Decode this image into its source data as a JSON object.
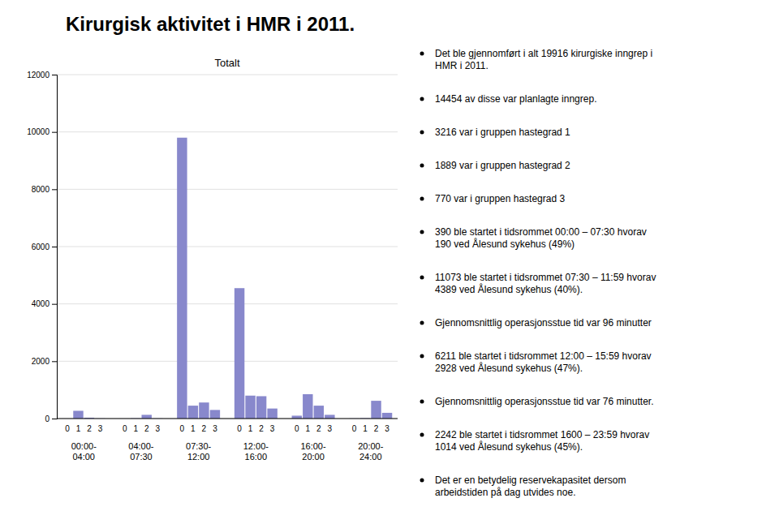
{
  "chart_data": {
    "type": "bar",
    "title": "Kirurgisk aktivitet i HMR i 2011.",
    "subtitle": "Totalt",
    "categories": [
      "00:00-\n04:00",
      "04:00-\n07:30",
      "07:30-\n12:00",
      "12:00-\n16:00",
      "16:00-\n20:00",
      "20:00-\n24:00"
    ],
    "sublabels": [
      "0",
      "1",
      "2",
      "3"
    ],
    "values": [
      [
        2,
        270,
        30,
        5
      ],
      [
        2,
        10,
        130,
        5
      ],
      [
        9800,
        450,
        560,
        300
      ],
      [
        4550,
        800,
        780,
        350
      ],
      [
        100,
        850,
        450,
        130
      ],
      [
        5,
        15,
        620,
        200
      ]
    ],
    "color": "#8888cc",
    "ylim": [
      0,
      12000
    ],
    "yticks": [
      0,
      2000,
      4000,
      6000,
      8000,
      10000,
      12000
    ],
    "grid": true,
    "bullet_points": [
      "Det ble gjennomført i alt 19916 kirurgiske inngrep i\nHMR i 2011.",
      "14454 av disse var planlagte inngrep.",
      "3216 var i gruppen hastegrad 1",
      "1889 var i gruppen hastegrad 2",
      "770 var i gruppen hastegrad 3",
      "390 ble startet i tidsrommet 00:00 – 07:30 hvorav\n190 ved Ålesund sykehus (49%)",
      "11073 ble startet i tidsrommet 07:30 – 11:59 hvorav\n4389 ved Ålesund sykehus (40%).",
      "Gjennomsnittlig operasjonsstue tid var 96 minutter",
      "6211 ble startet i tidsrommet 12:00 – 15:59 hvorav\n2928 ved Ålesund sykehus (47%).",
      "Gjennomsnittlig operasjonsstue tid var 76 minutter.",
      "2242 ble startet i tidsrommet 1600 – 23:59 hvorav\n1014 ved Ålesund sykehus (45%).",
      "Det er en betydelig reservekapasitet dersom\narbeidstiden på dag utvides noe."
    ]
  }
}
